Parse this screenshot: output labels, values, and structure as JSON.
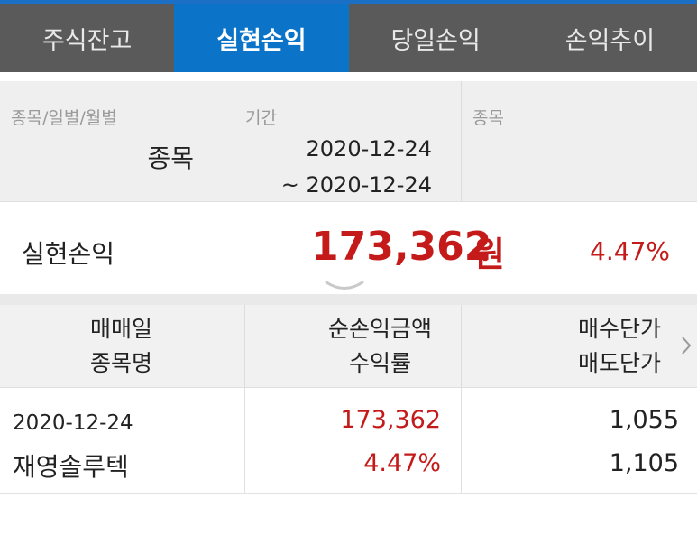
{
  "tabs": [
    {
      "label": "주식잔고",
      "active": false
    },
    {
      "label": "실현손익",
      "active": true
    },
    {
      "label": "당일손익",
      "active": false
    },
    {
      "label": "손익추이",
      "active": false
    }
  ],
  "filters": {
    "type_label": "종목/일별/월별",
    "type_value": "종목",
    "period_label": "기간",
    "period_from": "2020-12-24",
    "period_to": "~ 2020-12-24",
    "stock_label": "종목"
  },
  "summary": {
    "label": "실현손익",
    "amount": "173,362",
    "unit": "원",
    "rate": "4.47%"
  },
  "table": {
    "headers": {
      "col1_line1": "매매일",
      "col1_line2": "종목명",
      "col2_line1": "순손익금액",
      "col2_line2": "수익률",
      "col3_line1": "매수단가",
      "col3_line2": "매도단가"
    },
    "rows": [
      {
        "date": "2020-12-24",
        "name": "재영솔루텍",
        "pnl": "173,362",
        "rate": "4.47%",
        "buy_price": "1,055",
        "sell_price": "1,105"
      }
    ]
  },
  "colors": {
    "active_tab": "#0b74c9",
    "tab_bg": "#5a5a5a",
    "profit": "#c41a1a"
  },
  "icons": {
    "expand": "chevron-down-icon",
    "scroll_right": "chevron-right-icon"
  }
}
